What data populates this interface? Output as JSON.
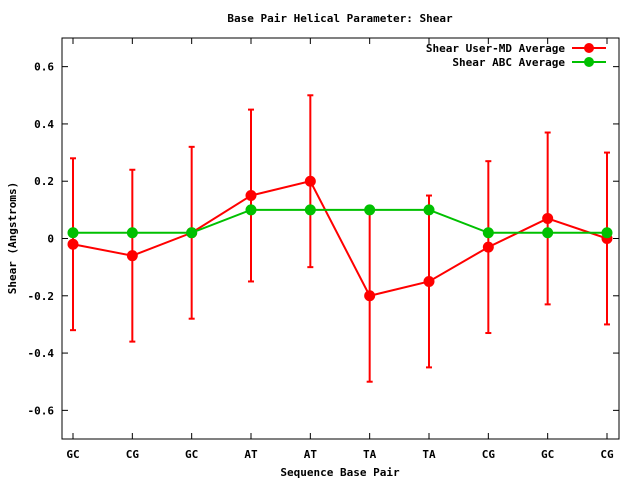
{
  "chart_data": {
    "type": "line",
    "title": "Base Pair Helical Parameter: Shear",
    "xlabel": "Sequence Base Pair",
    "ylabel": "Shear (Angstroms)",
    "categories": [
      "GC",
      "CG",
      "GC",
      "AT",
      "AT",
      "TA",
      "TA",
      "CG",
      "GC",
      "CG"
    ],
    "ylim": [
      -0.7,
      0.7
    ],
    "yticks": [
      0.6,
      0.4,
      0.2,
      0,
      -0.2,
      -0.4,
      -0.6
    ],
    "ytick_labels": [
      "0.6",
      "0.4",
      "0.2",
      "0",
      "-0.2",
      "-0.4",
      "-0.6"
    ],
    "legend_position": "top-right",
    "series": [
      {
        "name": "Shear User-MD Average",
        "color": "#ff0000",
        "values": [
          -0.02,
          -0.06,
          0.02,
          0.15,
          0.2,
          -0.2,
          -0.15,
          -0.03,
          0.07,
          0.0
        ],
        "error": [
          0.3,
          0.3,
          0.3,
          0.3,
          0.3,
          0.3,
          0.3,
          0.3,
          0.3,
          0.3
        ]
      },
      {
        "name": "Shear ABC Average",
        "color": "#00c000",
        "values": [
          0.02,
          0.02,
          0.02,
          0.1,
          0.1,
          0.1,
          0.1,
          0.02,
          0.02,
          0.02
        ]
      }
    ]
  }
}
